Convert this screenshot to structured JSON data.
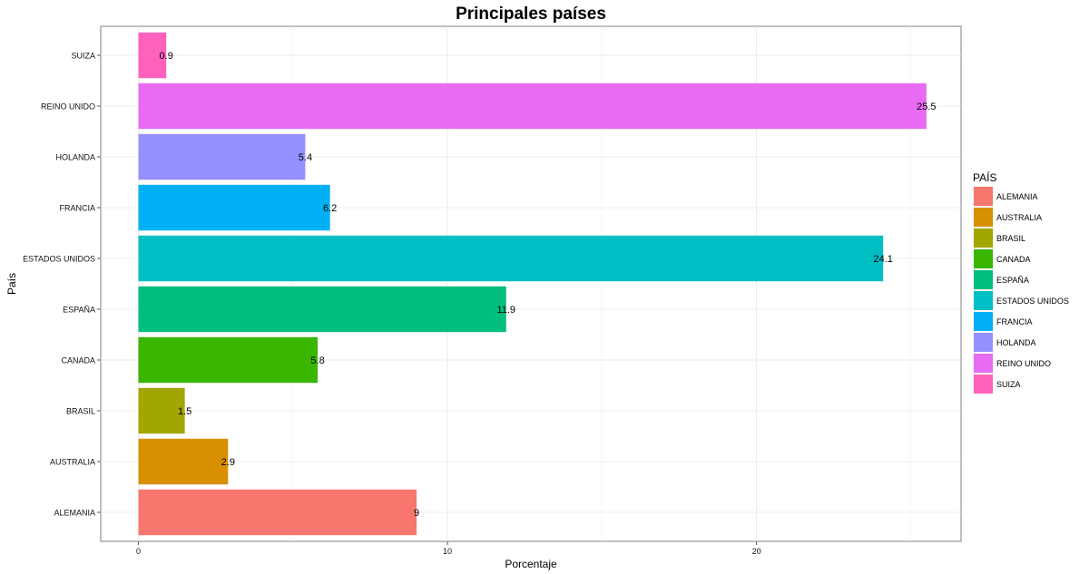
{
  "chart_data": {
    "type": "bar",
    "orientation": "horizontal",
    "title": "Principales países",
    "xlabel": "Porcentaje",
    "ylabel": "País",
    "xlim": [
      -1.22,
      26.62
    ],
    "xticks": [
      0,
      10,
      20
    ],
    "grid": true,
    "categories": [
      "ALEMANIA",
      "AUSTRALIA",
      "BRASIL",
      "CANADA",
      "ESPAÑA",
      "ESTADOS UNIDOS",
      "FRANCIA",
      "HOLANDA",
      "REINO UNIDO",
      "SUIZA"
    ],
    "values": [
      9,
      2.9,
      1.5,
      5.8,
      11.9,
      24.1,
      6.2,
      5.4,
      25.5,
      0.9
    ],
    "value_labels": [
      "9",
      "2.9",
      "1.5",
      "5.8",
      "11.9",
      "24.1",
      "6.2",
      "5.4",
      "25.5",
      "0.9"
    ],
    "colors": [
      "#F8766D",
      "#D89000",
      "#A3A500",
      "#39B600",
      "#00BF7D",
      "#00BFC4",
      "#00B0F6",
      "#9590FF",
      "#E76BF3",
      "#FF62BC"
    ],
    "legend": {
      "title": "PAÍS",
      "placement": "right",
      "entries": [
        "ALEMANIA",
        "AUSTRALIA",
        "BRASIL",
        "CANADA",
        "ESPAÑA",
        "ESTADOS UNIDOS",
        "FRANCIA",
        "HOLANDA",
        "REINO UNIDO",
        "SUIZA"
      ]
    }
  }
}
